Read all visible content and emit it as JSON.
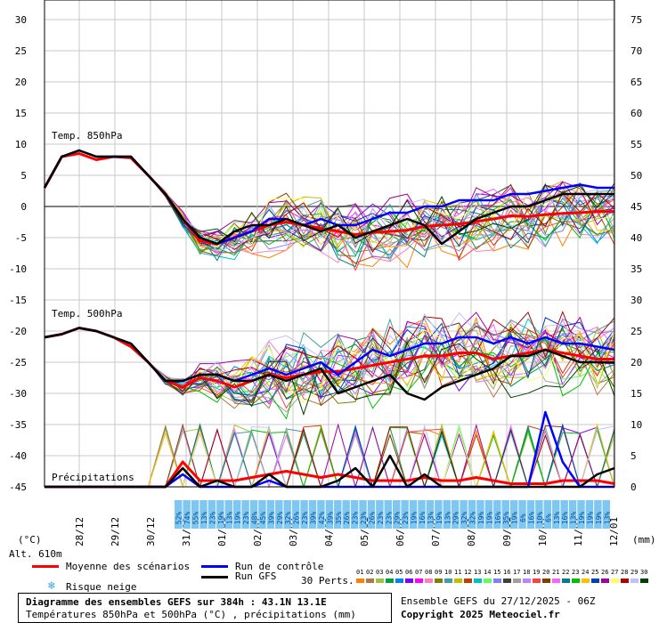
{
  "chart_data": {
    "type": "line",
    "title": "Diagramme des ensembles GEFS sur 384h : 43.1N 13.1E",
    "subtitle": "Températures 850hPa et 500hPa (°C) , précipitations (mm)",
    "left_axis": {
      "unit_label": "(°C)",
      "ticks": [
        30,
        25,
        20,
        15,
        10,
        5,
        0,
        -5,
        -10,
        -15,
        -20,
        -25,
        -30,
        -35,
        -40,
        -45
      ],
      "range": [
        -45,
        30
      ]
    },
    "right_axis": {
      "unit_label": "(mm)",
      "ticks": [
        75,
        70,
        65,
        60,
        55,
        50,
        45,
        40,
        35,
        30,
        25,
        20,
        15,
        10,
        5,
        0
      ],
      "range": [
        0,
        75
      ]
    },
    "altitude_label": "Alt. 610m",
    "x_dates": [
      "28/12",
      "29/12",
      "30/12",
      "31/12",
      "01/01",
      "02/01",
      "03/01",
      "04/01",
      "05/01",
      "06/01",
      "07/01",
      "08/01",
      "09/01",
      "10/01",
      "11/01",
      "12/01"
    ],
    "section_labels": {
      "t850": "Temp. 850hPa",
      "t500": "Temp. 500hPa",
      "precip": "Précipitations"
    },
    "snow_risk_pct": [
      "52%",
      "74%",
      "55%",
      "13%",
      "23%",
      "19%",
      "13%",
      "19%",
      "23%",
      "48%",
      "45%",
      "39%",
      "29%",
      "32%",
      "26%",
      "23%",
      "39%",
      "42%",
      "39%",
      "35%",
      "26%",
      "23%",
      "23%",
      "26%",
      "23%",
      "23%",
      "29%",
      "23%",
      "19%",
      "16%",
      "13%",
      "19%",
      "13%",
      "29%",
      "32%",
      "32%",
      "19%",
      "19%",
      "16%",
      "35%",
      "19%",
      "6%",
      "16%",
      "10%",
      "6%",
      "13%",
      "16%",
      "13%",
      "19%",
      "19%",
      "19%",
      "13%"
    ],
    "series": [
      {
        "name": "Moyenne des scénarios",
        "color": "#ff0000",
        "t850": [
          3,
          8,
          8.5,
          7.5,
          8,
          7.8,
          5,
          2,
          -2,
          -5.5,
          -6,
          -5,
          -4,
          -3,
          -2.5,
          -3,
          -3.5,
          -4,
          -4.5,
          -4.2,
          -4,
          -3.8,
          -3.2,
          -3,
          -2.8,
          -2.4,
          -2,
          -1.5,
          -1.6,
          -1.3,
          -1.1,
          -1,
          -0.8,
          -0.8
        ],
        "t500": [
          -21,
          -20.5,
          -19.5,
          -20,
          -21,
          -22.5,
          -25,
          -28,
          -29,
          -27.5,
          -28,
          -29,
          -28,
          -27,
          -27.5,
          -27,
          -26.5,
          -26.5,
          -26,
          -25.5,
          -25,
          -24.5,
          -24,
          -24,
          -23.5,
          -23.5,
          -24.5,
          -24,
          -23.5,
          -23,
          -23.5,
          -24,
          -24.5,
          -24.5
        ],
        "precip": [
          0,
          0,
          0,
          0,
          0,
          0,
          0,
          0,
          4,
          1,
          1,
          1,
          1.5,
          2,
          2.5,
          2,
          1.5,
          2,
          1.5,
          1,
          1,
          1,
          1.5,
          1,
          1,
          1.5,
          1,
          0.5,
          0.5,
          0.5,
          1,
          1,
          1,
          0.5
        ]
      },
      {
        "name": "Run de contrôle",
        "color": "#0000ff",
        "t850": [
          3,
          8,
          9,
          8,
          8,
          8,
          5,
          2,
          -2,
          -5,
          -6,
          -5,
          -4,
          -2,
          -2,
          -3,
          -2,
          -3,
          -3,
          -2,
          -1,
          -1,
          0,
          0,
          1,
          1,
          1,
          2,
          2,
          2.5,
          3,
          3.5,
          3,
          3
        ],
        "t500": [
          -21,
          -20.5,
          -19.5,
          -20,
          -21,
          -22,
          -25,
          -28,
          -28,
          -27,
          -27,
          -28,
          -27,
          -26,
          -27,
          -26,
          -25,
          -27,
          -25,
          -23,
          -24,
          -23,
          -22,
          -22,
          -21,
          -21,
          -22,
          -21,
          -22,
          -21,
          -22,
          -22,
          -22.5,
          -23
        ],
        "precip": [
          0,
          0,
          0,
          0,
          0,
          0,
          0,
          0,
          2,
          0,
          0,
          0,
          0,
          1,
          0,
          0,
          0,
          0,
          0,
          0,
          0,
          0,
          0,
          0,
          0,
          0,
          0,
          0,
          0,
          12,
          4,
          0,
          0,
          0
        ]
      },
      {
        "name": "Run GFS",
        "color": "#000000",
        "t850": [
          3,
          8,
          9,
          8,
          8,
          8,
          5,
          2,
          -2,
          -5,
          -6,
          -4,
          -3,
          -3,
          -2,
          -3,
          -4,
          -3,
          -5,
          -4,
          -3,
          -2,
          -3,
          -6,
          -4,
          -2,
          -1,
          0,
          0,
          1,
          2,
          2,
          2,
          2
        ],
        "t500": [
          -21,
          -20.5,
          -19.5,
          -20,
          -21,
          -22,
          -25,
          -28,
          -28,
          -27,
          -27,
          -28,
          -28,
          -27,
          -28,
          -27,
          -26,
          -30,
          -29,
          -28,
          -27,
          -30,
          -31,
          -29,
          -28,
          -27,
          -26,
          -24,
          -24,
          -23,
          -24,
          -25,
          -25,
          -25
        ],
        "precip": [
          0,
          0,
          0,
          0,
          0,
          0,
          0,
          0,
          3,
          0,
          1,
          0,
          0,
          2,
          0,
          0,
          0,
          1,
          3,
          0,
          5,
          0,
          2,
          0,
          0,
          0,
          0,
          0,
          0,
          0,
          0,
          0,
          2,
          3
        ]
      }
    ],
    "perturbations_label": "30 Perts.",
    "perturbation_ids": [
      "01",
      "02",
      "03",
      "04",
      "05",
      "06",
      "07",
      "08",
      "09",
      "10",
      "11",
      "12",
      "13",
      "14",
      "15",
      "16",
      "17",
      "18",
      "19",
      "20",
      "21",
      "22",
      "23",
      "24",
      "25",
      "26",
      "27",
      "28",
      "29",
      "30"
    ],
    "perturbation_colors": [
      "#ff8000",
      "#b07848",
      "#a0c040",
      "#00a040",
      "#0080ff",
      "#8000ff",
      "#ff00ff",
      "#ff80c0",
      "#808000",
      "#40a0a0",
      "#c0c000",
      "#c04000",
      "#00c0c0",
      "#60ff60",
      "#8080ff",
      "#404040",
      "#a0a0a0",
      "#c080ff",
      "#ff4040",
      "#804000",
      "#ff60ff",
      "#008080",
      "#00c000",
      "#ffc000",
      "#0040c0",
      "#a000a0",
      "#ffff60",
      "#b00000",
      "#c0c0ff",
      "#004000"
    ]
  },
  "legend": {
    "mean_label": "Moyenne des scénarios",
    "control_label": "Run de contrôle",
    "gfs_label": "Run GFS",
    "snow_label": "Risque neige"
  },
  "footer": {
    "title": "Diagramme des ensembles GEFS sur 384h : 43.1N 13.1E",
    "subtitle": "Températures 850hPa et 500hPa (°C) , précipitations (mm)",
    "run_info": "Ensemble GEFS du 27/12/2025 - 06Z",
    "copyright": "Copyright 2025 Meteociel.fr"
  }
}
